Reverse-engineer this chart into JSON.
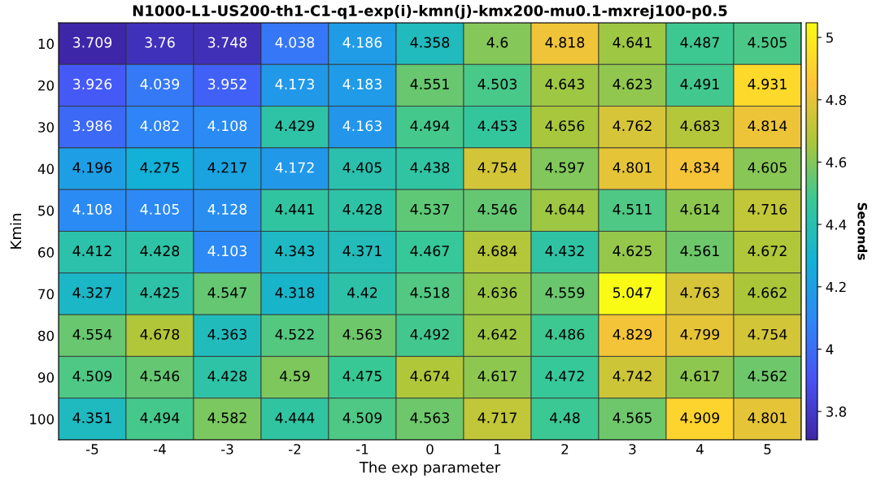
{
  "chart_data": {
    "type": "heatmap",
    "title": "N1000-L1-US200-th1-C1-q1-exp(i)-kmn(j)-kmx200-mu0.1-mxrej100-p0.5",
    "xlabel": "The exp parameter",
    "ylabel": "Kmin",
    "clabel": "Seconds",
    "categories": [
      "-5",
      "-4",
      "-3",
      "-2",
      "-1",
      "0",
      "1",
      "2",
      "3",
      "4",
      "5"
    ],
    "y_categories": [
      "10",
      "20",
      "30",
      "40",
      "50",
      "60",
      "70",
      "80",
      "90",
      "100"
    ],
    "cells": [
      [
        3.709,
        3.76,
        3.748,
        4.038,
        4.186,
        4.358,
        4.6,
        4.818,
        4.641,
        4.487,
        4.505
      ],
      [
        3.926,
        4.039,
        3.952,
        4.173,
        4.183,
        4.551,
        4.503,
        4.643,
        4.623,
        4.491,
        4.931
      ],
      [
        3.986,
        4.082,
        4.108,
        4.429,
        4.163,
        4.494,
        4.453,
        4.656,
        4.762,
        4.683,
        4.814
      ],
      [
        4.196,
        4.275,
        4.217,
        4.172,
        4.405,
        4.438,
        4.754,
        4.597,
        4.801,
        4.834,
        4.605
      ],
      [
        4.108,
        4.105,
        4.128,
        4.441,
        4.428,
        4.537,
        4.546,
        4.644,
        4.511,
        4.614,
        4.716
      ],
      [
        4.412,
        4.428,
        4.103,
        4.343,
        4.371,
        4.467,
        4.684,
        4.432,
        4.625,
        4.561,
        4.672
      ],
      [
        4.327,
        4.425,
        4.547,
        4.318,
        4.42,
        4.518,
        4.636,
        4.559,
        5.047,
        4.763,
        4.662
      ],
      [
        4.554,
        4.678,
        4.363,
        4.522,
        4.563,
        4.492,
        4.642,
        4.486,
        4.829,
        4.799,
        4.754
      ],
      [
        4.509,
        4.546,
        4.428,
        4.59,
        4.475,
        4.674,
        4.617,
        4.472,
        4.742,
        4.617,
        4.562
      ],
      [
        4.351,
        4.494,
        4.582,
        4.444,
        4.509,
        4.563,
        4.717,
        4.48,
        4.565,
        4.909,
        4.801
      ]
    ],
    "clim": [
      3.709,
      5.047
    ],
    "cticks": [
      3.8,
      4,
      4.2,
      4.4,
      4.6,
      4.8,
      5
    ],
    "data_labels": true
  }
}
